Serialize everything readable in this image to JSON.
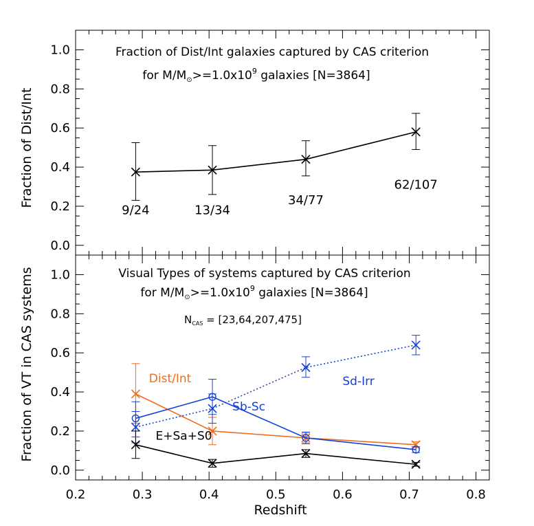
{
  "chart_data": [
    {
      "type": "line",
      "title": "Fraction of Dist/Int galaxies captured by CAS criterion",
      "subtitle_prefix": "for M/M",
      "subtitle_mid": ">=1.0x10",
      "subtitle_exp": "9",
      "subtitle_suffix": "  galaxies [N=3864]",
      "xlabel": "",
      "ylabel": "Fraction of Dist/Int",
      "xlim": [
        0.2,
        0.82
      ],
      "ylim": [
        -0.05,
        1.1
      ],
      "yticks": [
        "0.0",
        "0.2",
        "0.4",
        "0.6",
        "0.8",
        "1.0"
      ],
      "series": [
        {
          "color": "#000000",
          "linestyle": "solid",
          "marker": "x",
          "x": [
            0.29,
            0.405,
            0.545,
            0.71
          ],
          "y": [
            0.375,
            0.385,
            0.44,
            0.58
          ],
          "err_low": [
            0.23,
            0.26,
            0.355,
            0.49
          ],
          "err_high": [
            0.525,
            0.51,
            0.535,
            0.675
          ]
        }
      ],
      "annotations": [
        {
          "text": "9/24",
          "x": 0.29,
          "y": 0.16
        },
        {
          "text": "13/34",
          "x": 0.405,
          "y": 0.16
        },
        {
          "text": "34/77",
          "x": 0.545,
          "y": 0.21
        },
        {
          "text": "62/107",
          "x": 0.71,
          "y": 0.29
        }
      ]
    },
    {
      "type": "line",
      "title": "Visual Types of systems captured by CAS criterion",
      "subtitle_prefix": "for M/M",
      "subtitle_mid": ">=1.0x10",
      "subtitle_exp": "9",
      "subtitle_suffix": "  galaxies [N=3864]",
      "ncas_prefix": "N",
      "ncas_sub": "CAS",
      "ncas_values": " = [23,64,207,475]",
      "xlabel": "Redshift",
      "ylabel": "Fraction of VT in CAS systems",
      "xlim": [
        0.2,
        0.82
      ],
      "ylim": [
        -0.05,
        1.1
      ],
      "xticks": [
        "0.2",
        "0.3",
        "0.4",
        "0.5",
        "0.6",
        "0.7",
        "0.8"
      ],
      "yticks": [
        "0.0",
        "0.2",
        "0.4",
        "0.6",
        "0.8",
        "1.0"
      ],
      "series": [
        {
          "name": "Dist/Int",
          "color": "#f06c1a",
          "linestyle": "solid",
          "marker": "x",
          "x": [
            0.29,
            0.405,
            0.545,
            0.71
          ],
          "y": [
            0.39,
            0.2,
            0.165,
            0.13
          ],
          "err_low": [
            0.24,
            0.13,
            0.14,
            0.115
          ],
          "err_high": [
            0.545,
            0.27,
            0.19,
            0.145
          ]
        },
        {
          "name": "Sb-Sc",
          "color": "#1540d8",
          "linestyle": "solid",
          "marker": "o",
          "x": [
            0.29,
            0.405,
            0.545,
            0.71
          ],
          "y": [
            0.265,
            0.375,
            0.165,
            0.105
          ],
          "err_low": [
            0.17,
            0.285,
            0.135,
            0.09
          ],
          "err_high": [
            0.35,
            0.465,
            0.195,
            0.12
          ]
        },
        {
          "name": "Sd-Irr",
          "color": "#1540d8",
          "linestyle": "dotted",
          "marker": "x",
          "x": [
            0.29,
            0.405,
            0.545,
            0.71
          ],
          "y": [
            0.22,
            0.315,
            0.525,
            0.64
          ],
          "err_low": [
            0.14,
            0.24,
            0.475,
            0.59
          ],
          "err_high": [
            0.3,
            0.39,
            0.58,
            0.69
          ]
        },
        {
          "name": "E+Sa+S0",
          "color": "#000000",
          "linestyle": "solid",
          "marker": "x",
          "x": [
            0.29,
            0.405,
            0.545,
            0.71
          ],
          "y": [
            0.13,
            0.035,
            0.085,
            0.03
          ],
          "err_low": [
            0.06,
            0.015,
            0.065,
            0.02
          ],
          "err_high": [
            0.2,
            0.055,
            0.105,
            0.04
          ]
        }
      ],
      "labels": [
        {
          "text": "Dist/Int",
          "color": "#f06c1a",
          "x": 0.31,
          "y": 0.45
        },
        {
          "text": "Sb-Sc",
          "color": "#1540d8",
          "x": 0.435,
          "y": 0.305
        },
        {
          "text": "Sd-Irr",
          "color": "#1540d8",
          "x": 0.6,
          "y": 0.435
        },
        {
          "text": "E+Sa+S0",
          "color": "#000000",
          "x": 0.32,
          "y": 0.155
        }
      ]
    }
  ]
}
